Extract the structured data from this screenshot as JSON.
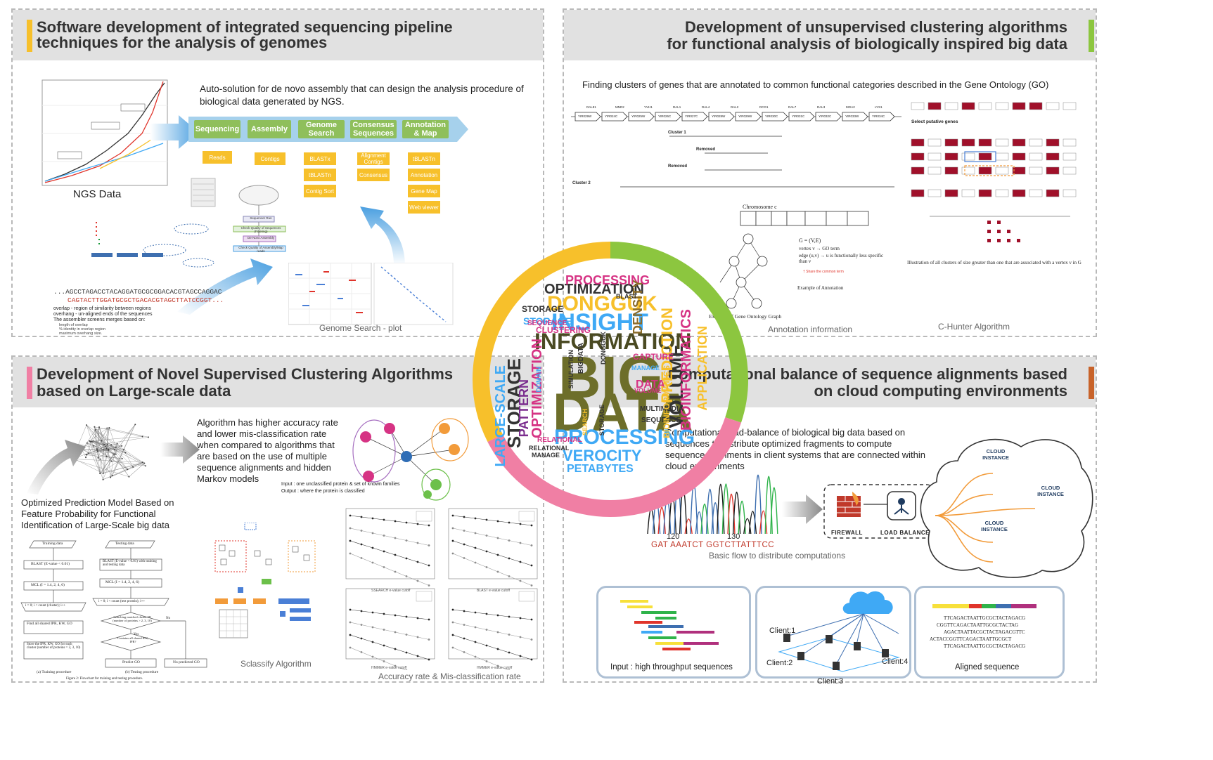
{
  "panels": {
    "p1": {
      "title": "Software development of integrated sequencing pipeline techniques for the analysis of genomes",
      "accent": "#f7c02b",
      "auto_text": "Auto-solution for de novo assembly that can design the analysis procedure of biological data generated by NGS.",
      "ngs_label": "NGS Data",
      "pipeline": [
        "Sequencing",
        "Assembly",
        "Genome Search",
        "Consensus Sequences",
        "Annotation & Map"
      ],
      "sub_boxes": {
        "sequencing": [
          "Reads"
        ],
        "assembly": [
          "Contigs"
        ],
        "genome_search": [
          "BLASTx",
          "tBLASTn",
          "Contig Sort"
        ],
        "consensus": [
          "Alignment Contigs",
          "Consensus"
        ],
        "annotation": [
          "tBLASTn",
          "Annotation",
          "Gene Map",
          "Web viewer"
        ]
      },
      "flow_steps": [
        "Sequencer Run",
        "Check Quality of Sequences (Filtering)",
        "De Novo Assembly",
        "Check Quality of Assembly/Map reads"
      ],
      "seq_line1": "...AGCCTAGACCTACAGGATGCGCGGACACGTAGCCAGGAC",
      "seq_line2": "CAGTACTTGGATGCGCTGACACGTAGCTTATCCGGT...",
      "overlap_def": "overlap - region of similarity between regions",
      "overhang_def": "overhang - un-aligned ends of the sequences",
      "assembler_text": "The assembler screens merges based on:",
      "criteria": [
        "length of overlap",
        "% identity in overlap region",
        "maximum overhang size."
      ],
      "genome_search_caption": "Genome Search - plot"
    },
    "p2": {
      "title_line1": "Development of unsupervised clustering algorithms",
      "title_line2": "for functional analysis of  biologically inspired big data",
      "accent": "#8cc63f",
      "finding_text": "Finding clusters of genes that are annotated to common functional categories described in the Gene Ontology (GO)",
      "genes": [
        "YIR029W",
        "YIR024C",
        "YIR025W",
        "YIR026C",
        "YIR027C",
        "YIR028W",
        "YIR029W",
        "YIR030C",
        "YIR031C",
        "YIR032C",
        "YIR033W",
        "YIR034C"
      ],
      "gene_top": [
        "DAL81",
        "MND2",
        "YVH1",
        "DAL1",
        "DAL4",
        "DAL2",
        "DCG1",
        "DAL7",
        "DAL3",
        "MGA2",
        "LYS1"
      ],
      "cluster1": "Cluster 1",
      "cluster2": "Cluster 2",
      "removed": "Removed",
      "chromosome": "Chromosome c",
      "graph_caption": "Example of Gene Ontology Graph",
      "annotation_caption": "Annotation information",
      "chunter_caption": "C-Hunter Algorithm",
      "select_text": "Select putative genes",
      "illus_text": "Illustration of all clusters of size greater than one that are associated with a vertex v in G",
      "g_def": "G = (V,E)",
      "vertex_def": "vertex v → GO term",
      "edge_def": "edge (u,v) → u is functionally less specific than v",
      "example_annot": "Example of Annotation",
      "share_text": "† Share the common term"
    },
    "p3": {
      "title_line1": "Development of Novel Supervised Clustering Algorithms",
      "title_line2": "based on Large-scale data",
      "accent": "#f07fa4",
      "algo_text": "Algorithm has higher accuracy rate and lower mis-classification rate when compared to algorithms that are based on the use of multiple sequence alignments and hidden Markov models",
      "opt_text": "Optimized Prediction Model Based on Feature Probability for Functional Identification of Large-Scale big data",
      "input_text": "Input : one unclassified protein & set of known families",
      "output_text": "Output : where the protein is classified",
      "sclassify_caption": "Sclassify Algorithm",
      "accuracy_caption": "Accuracy rate & Mis-classification rate",
      "training_caption": "(a) Training procedure",
      "testing_caption": "(b) Testing procedure",
      "figure_caption": "Figure 2: Flowchart for training and testing procedure.",
      "train_steps": [
        "Training data",
        "BLAST (E-value < 0.01)",
        "MCL (I = 1.4, 2, 4, 6)",
        "i = 0; i < count (cluster); i++",
        "Find all shared IPR, KW, GO",
        "Store the IPR, KW, GO for each cluster (number of proteins = 2, 3, 10)"
      ],
      "test_steps": [
        "Testing data",
        "BLAST (E-value < 0.01) with training and testing data",
        "MCL (I = 1.4, 2, 4, 6)",
        "i = 0; i < count (test protein); i++",
        "Searching matched cluster ID (number of proteins > 2, 3, 10)",
        "Contains all shared KW, IPR?",
        "Predict GO",
        "No predicted GO"
      ],
      "yes": "Yes",
      "no": "No",
      "xaxis_labels": [
        "SSEARCH e-value cutoff",
        "BLAST e-value cutoff",
        "HMMER e-value cutoff",
        "HMMER e-value cutoff"
      ]
    },
    "p4": {
      "title_line1": "Computational balance of sequence alignments based",
      "title_line2": "on cloud computing environments",
      "accent": "#c8632a",
      "load_text": "Computational load-balance of biological big data based on sequences to distribute optimized fragments to compute sequence alignments in client systems that are connected within cloud environments",
      "trace_num1": "120",
      "trace_num2": "130",
      "trace_seq": "GAT AAATCT GGTCTTATTTCC",
      "basic_flow": "Basic flow to distribute computations",
      "firewall": "FIREWALL",
      "load_balancer": "LOAD BALANCER",
      "cloud_instances": [
        "CLOUD INSTANCE",
        "CLOUD INSTANCE",
        "CLOUD INSTANCE"
      ],
      "input_caption": "Input : high throughput sequences",
      "aligned_caption": "Aligned sequence",
      "clients": [
        "Client:1",
        "Client:2",
        "Client:3",
        "Client:4"
      ],
      "aligned_seqs": [
        "TTCAGACTAATTGCGCTACTAGACG",
        "CGGTTCAGACTAATTGCGCTACTAG",
        "AGACTAATTACGCTACTAGACGTTC",
        "ACTACCGGTTCAGACTAATTGCGCT",
        "TTCAGACTAATTGCGCTACTAGACG"
      ]
    }
  },
  "wordcloud": {
    "ring_colors": [
      "#8cc63f",
      "#f07fa4",
      "#f7c02b"
    ],
    "words": [
      {
        "t": "BIG",
        "c": "#6d6e2a"
      },
      {
        "t": "DATA",
        "c": "#6d6e2a"
      },
      {
        "t": "INFORMATION",
        "c": "#4a4a22"
      },
      {
        "t": "INSIGHT",
        "c": "#3fa9f5"
      },
      {
        "t": "DONGGUK",
        "c": "#f7c02b"
      },
      {
        "t": "OPTIMIZATION",
        "c": "#333333"
      },
      {
        "t": "PROCESSING",
        "c": "#d63384"
      },
      {
        "t": "PROCESSING",
        "c": "#3fa9f5"
      },
      {
        "t": "VEROCITY",
        "c": "#3fa9f5"
      },
      {
        "t": "PETABYTES",
        "c": "#3fa9f5"
      },
      {
        "t": "STORAGE",
        "c": "#333333"
      },
      {
        "t": "VOLUME",
        "c": "#333333"
      },
      {
        "t": "PREDICTION",
        "c": "#f7c02b"
      },
      {
        "t": "BIOINFORMATICS",
        "c": "#d63384"
      },
      {
        "t": "APPLICATION",
        "c": "#f7c02b"
      },
      {
        "t": "DENSITY",
        "c": "#8b6c2a"
      },
      {
        "t": "LARGE-SCALE",
        "c": "#3fa9f5"
      },
      {
        "t": "OPTIMIZATION",
        "c": "#d63384"
      },
      {
        "t": "PATTERN",
        "c": "#7b2d8e"
      },
      {
        "t": "STORAGE",
        "c": "#3fa9f5"
      },
      {
        "t": "RELATIONAL",
        "c": "#d63384"
      },
      {
        "t": "SEQUENCE",
        "c": "#333333"
      },
      {
        "t": "MULTIMEDIA",
        "c": "#333333"
      },
      {
        "t": "BLAST",
        "c": "#333333"
      },
      {
        "t": "CAPTURE",
        "c": "#d63384"
      },
      {
        "t": "DOMAIN",
        "c": "#3fa9f5"
      },
      {
        "t": "STORAGE",
        "c": "#333333"
      },
      {
        "t": "CLUSTERING",
        "c": "#d63384"
      },
      {
        "t": "SEQUENCE",
        "c": "#d63384"
      },
      {
        "t": "SIMULATION",
        "c": "#333333"
      },
      {
        "t": "BIGDATA",
        "c": "#333333"
      },
      {
        "t": "DATA",
        "c": "#d63384"
      },
      {
        "t": "RELATIONAL",
        "c": "#333333"
      },
      {
        "t": "MANAGE",
        "c": "#333333"
      },
      {
        "t": "VOLUME",
        "c": "#d63384"
      },
      {
        "t": "DONGGUK",
        "c": "#333333"
      },
      {
        "t": "MANAGE",
        "c": "#3fa9f5"
      },
      {
        "t": "SEARCH",
        "c": "#f7c02b"
      },
      {
        "t": "STORAGE",
        "c": "#333333"
      },
      {
        "t": "BIOINFORMATICS",
        "c": "#f7c02b"
      }
    ]
  }
}
